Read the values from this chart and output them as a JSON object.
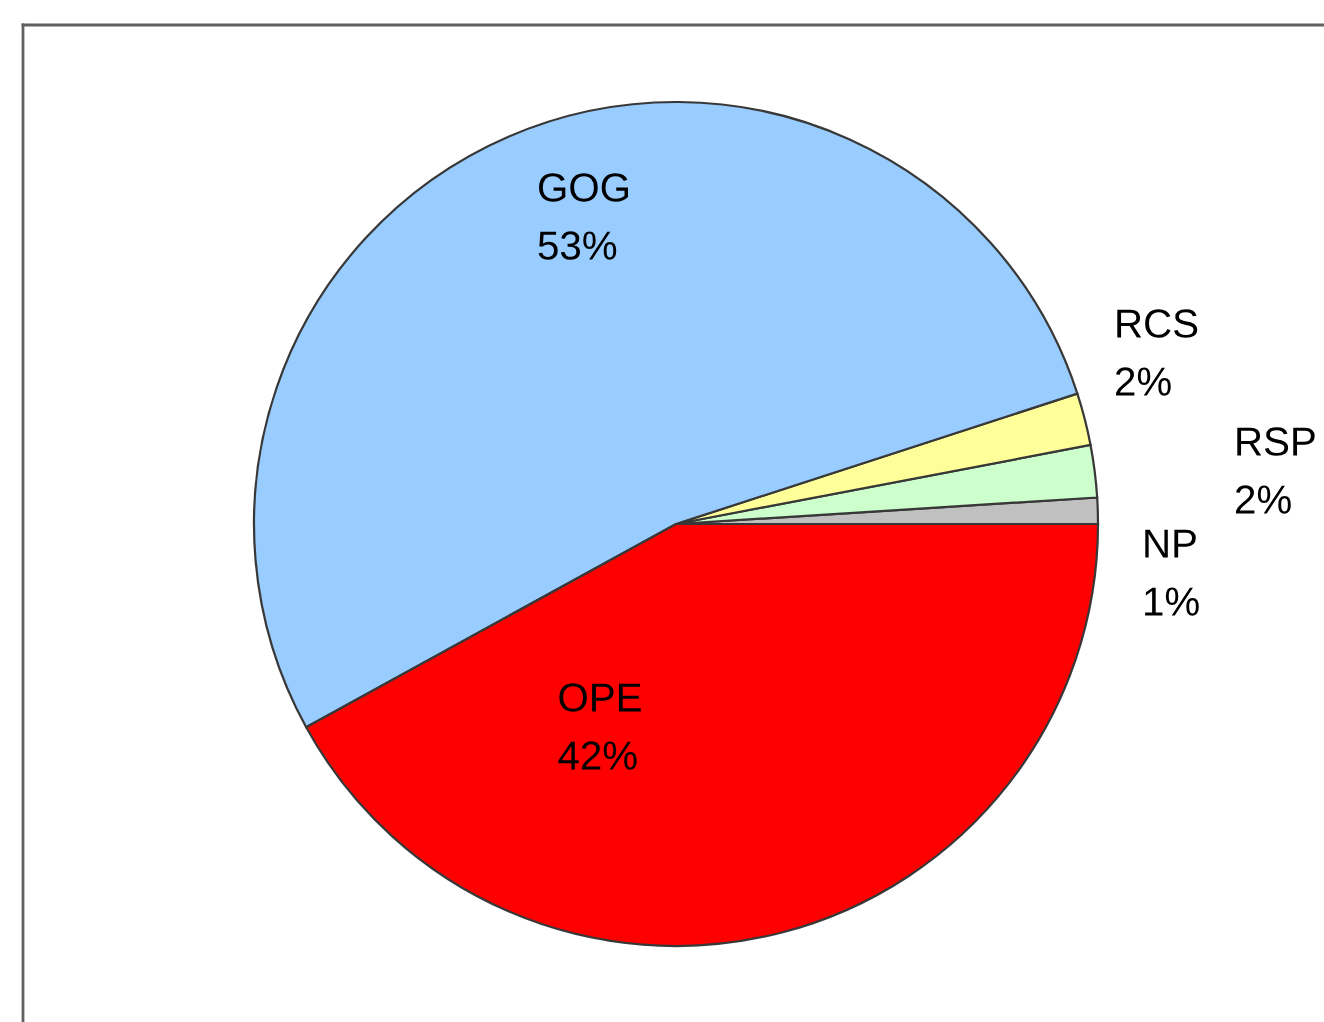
{
  "chart_data": {
    "type": "pie",
    "categories": [
      "NP",
      "RSP",
      "RCS",
      "GOG",
      "OPE"
    ],
    "values": [
      1,
      2,
      2,
      53,
      42
    ],
    "value_labels": [
      "1%",
      "2%",
      "2%",
      "53%",
      "42%"
    ],
    "colors": [
      "#c0c0c0",
      "#ccffcc",
      "#ffff99",
      "#99ccff",
      "#ff0000"
    ],
    "legend": false
  }
}
